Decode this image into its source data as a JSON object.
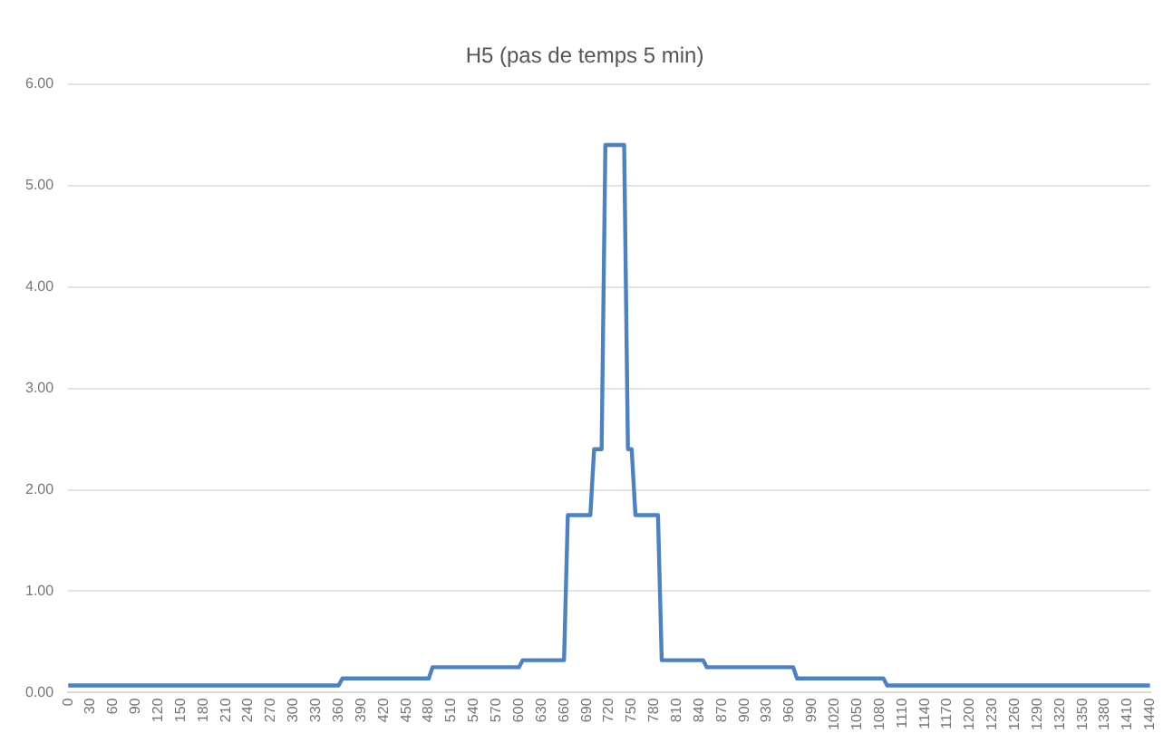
{
  "chart_data": {
    "type": "line",
    "title": "H5 (pas de temps 5 min)",
    "x": [
      0,
      360,
      365,
      480,
      485,
      600,
      605,
      660,
      665,
      695,
      700,
      710,
      715,
      740,
      745,
      750,
      755,
      785,
      790,
      845,
      850,
      965,
      970,
      1085,
      1090,
      1440
    ],
    "series": [
      {
        "color": "#4f81bd",
        "values": [
          0.07,
          0.07,
          0.14,
          0.14,
          0.25,
          0.25,
          0.32,
          0.32,
          1.75,
          1.75,
          2.4,
          2.4,
          5.4,
          5.4,
          2.4,
          2.4,
          1.75,
          1.75,
          0.32,
          0.32,
          0.25,
          0.25,
          0.14,
          0.14,
          0.07,
          0.07
        ]
      }
    ],
    "xlim": [
      0,
      1440
    ],
    "xticks": [
      0,
      30,
      60,
      90,
      120,
      150,
      180,
      210,
      240,
      270,
      300,
      330,
      360,
      390,
      420,
      450,
      480,
      510,
      540,
      570,
      600,
      630,
      660,
      690,
      720,
      750,
      780,
      810,
      840,
      870,
      900,
      930,
      960,
      990,
      1020,
      1050,
      1080,
      1110,
      1140,
      1170,
      1200,
      1230,
      1260,
      1290,
      1320,
      1350,
      1380,
      1410,
      1440
    ],
    "ylim": [
      0,
      6
    ],
    "yticks": [
      {
        "value": 0,
        "label": "0.00"
      },
      {
        "value": 1,
        "label": "1.00"
      },
      {
        "value": 2,
        "label": "2.00"
      },
      {
        "value": 3,
        "label": "3.00"
      },
      {
        "value": 4,
        "label": "4.00"
      },
      {
        "value": 5,
        "label": "5.00"
      },
      {
        "value": 6,
        "label": "6.00"
      }
    ],
    "grid": "y",
    "legend": false,
    "marker": "none",
    "line_style": "solid"
  }
}
